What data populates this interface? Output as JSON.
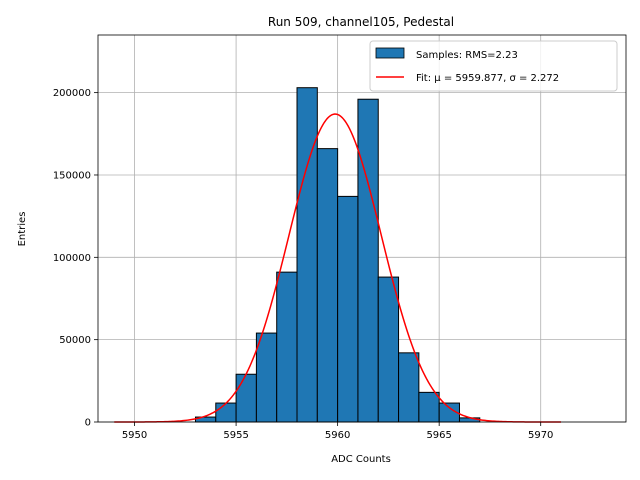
{
  "chart_data": {
    "type": "bar",
    "title": "Run 509, channel105, Pedestal",
    "xlabel": "ADC Counts",
    "ylabel": "Entries",
    "xlim": [
      5948.2,
      5974.2
    ],
    "ylim": [
      0,
      235000
    ],
    "xticks": [
      5950,
      5955,
      5960,
      5965,
      5970
    ],
    "yticks": [
      0,
      50000,
      100000,
      150000,
      200000
    ],
    "grid": true,
    "legend_position": "top-right",
    "histogram": {
      "name": "Samples: RMS=2.23",
      "color": "#1f77b4",
      "edge_color": "#000000",
      "bin_edges": [
        5953,
        5954,
        5955,
        5956,
        5957,
        5958,
        5959,
        5960,
        5961,
        5962,
        5963,
        5964,
        5965,
        5966,
        5967
      ],
      "counts": [
        3000,
        11500,
        29000,
        54000,
        91000,
        203000,
        166000,
        137000,
        196000,
        88000,
        42000,
        18000,
        11500,
        2500
      ]
    },
    "fit": {
      "name": "Fit: μ = 5959.877, σ = 2.272",
      "color": "#ff0000",
      "mu": 5959.877,
      "sigma": 2.272,
      "amplitude": 187000,
      "x_range": [
        5949,
        5971
      ]
    }
  }
}
